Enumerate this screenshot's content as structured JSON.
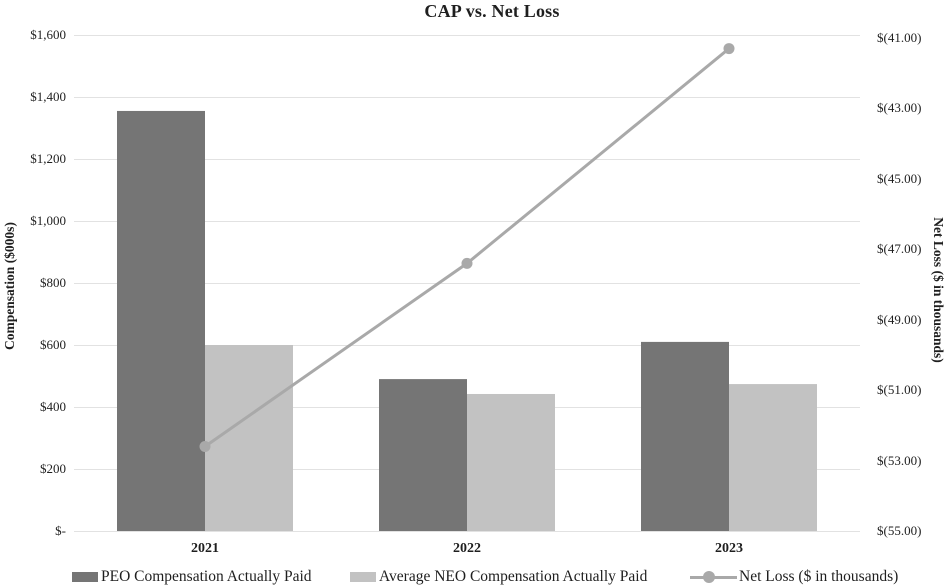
{
  "title": "CAP vs. Net Loss",
  "colors": {
    "peo_bar": "#757575",
    "neo_bar": "#c2c2c2",
    "net_loss_line": "#a9a9a9",
    "gridline": "#e2e2e2",
    "text": "#1f1f1f"
  },
  "legend": {
    "position": "bottom",
    "items": [
      {
        "label": "PEO Compensation Actually Paid",
        "glyph": "bar-swatch"
      },
      {
        "label": "Average NEO Compensation Actually Paid",
        "glyph": "bar-swatch"
      },
      {
        "label": "Net Loss ($ in thousands)",
        "glyph": "line-marker"
      }
    ]
  },
  "chart_data": {
    "type": "bar",
    "subtype": "grouped-bar-with-line-combo",
    "title": "CAP vs. Net Loss",
    "categories": [
      "2021",
      "2022",
      "2023"
    ],
    "series": [
      {
        "name": "PEO Compensation Actually Paid",
        "type": "bar",
        "axis": "left",
        "values": [
          1355,
          490,
          610
        ],
        "color": "#757575"
      },
      {
        "name": "Average NEO Compensation Actually Paid",
        "type": "bar",
        "axis": "left",
        "values": [
          600,
          442,
          474
        ],
        "color": "#c2c2c2"
      },
      {
        "name": "Net Loss ($ in thousands)",
        "type": "line",
        "axis": "right",
        "values": [
          -52.6,
          -47.4,
          -41.3
        ],
        "color": "#a9a9a9",
        "marker": "circle"
      }
    ],
    "left_axis": {
      "label": "Compensation ($000s)",
      "range": [
        0,
        1600
      ],
      "tick_step": 200,
      "tick_labels_top_to_bottom": [
        "$1,600",
        "$1,400",
        "$1,200",
        "$1,000",
        "$800",
        "$600",
        "$400",
        "$200",
        "$-"
      ]
    },
    "right_axis": {
      "label": "Net Loss ($ in thousands)",
      "range": [
        -55,
        -41
      ],
      "tick_step": 2,
      "tick_labels_top_to_bottom": [
        "$(41.00)",
        "$(43.00)",
        "$(45.00)",
        "$(47.00)",
        "$(49.00)",
        "$(51.00)",
        "$(53.00)",
        "$(55.00)"
      ]
    },
    "grid": true,
    "legend_position": "bottom"
  }
}
